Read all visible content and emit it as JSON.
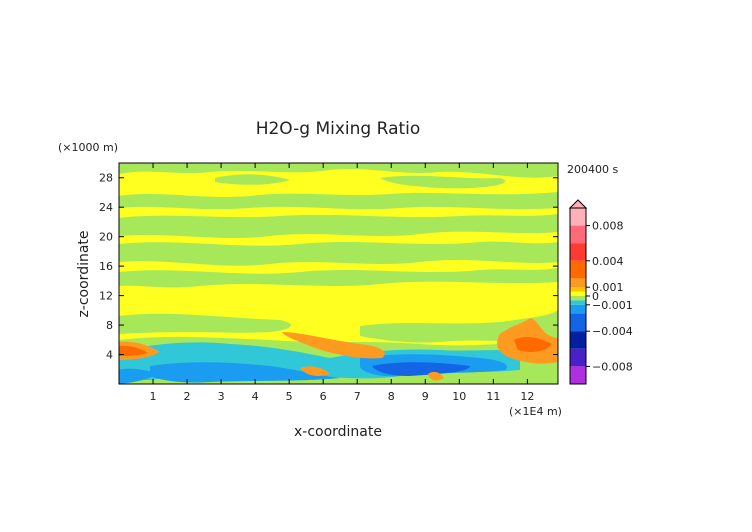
{
  "chart_data": {
    "type": "heatmap",
    "title": "H2O-g Mixing Ratio",
    "xlabel": "x-coordinate",
    "ylabel": "z-coordinate",
    "x_unit_label": "(×1E4 m)",
    "y_unit_label": "(×1000 m)",
    "time_label": "200400 s",
    "xlim": [
      0,
      12.9
    ],
    "ylim": [
      0,
      30
    ],
    "x_ticks": [
      1,
      2,
      3,
      4,
      5,
      6,
      7,
      8,
      9,
      10,
      11,
      12
    ],
    "y_ticks": [
      4,
      8,
      12,
      16,
      20,
      24,
      28
    ],
    "colorbar": {
      "min": -0.01,
      "max": 0.01,
      "ticks": [
        {
          "value": 0.008,
          "label": "0.008"
        },
        {
          "value": 0.004,
          "label": "0.004"
        },
        {
          "value": 0.001,
          "label": "0.001"
        },
        {
          "value": 0,
          "label": "0"
        },
        {
          "value": -0.001,
          "label": "−0.001"
        },
        {
          "value": -0.004,
          "label": "−0.004"
        },
        {
          "value": -0.008,
          "label": "−0.008"
        }
      ],
      "stops": [
        {
          "value": 0.01,
          "color": "#ffb0b8"
        },
        {
          "value": 0.008,
          "color": "#ff6a78"
        },
        {
          "value": 0.006,
          "color": "#ff3a30"
        },
        {
          "value": 0.004,
          "color": "#ff6a00"
        },
        {
          "value": 0.002,
          "color": "#ff9a20"
        },
        {
          "value": 0.001,
          "color": "#ffc400"
        },
        {
          "value": 0.0005,
          "color": "#ffff20"
        },
        {
          "value": 0.0,
          "color": "#a6e85a"
        },
        {
          "value": -0.0005,
          "color": "#30c8d8"
        },
        {
          "value": -0.001,
          "color": "#1a9cf0"
        },
        {
          "value": -0.002,
          "color": "#1464e6"
        },
        {
          "value": -0.004,
          "color": "#0020a0"
        },
        {
          "value": -0.006,
          "color": "#4a20c8"
        },
        {
          "value": -0.008,
          "color": "#b030e0"
        },
        {
          "value": -0.01,
          "color": "#ff40c8"
        }
      ]
    },
    "field_regions": [
      {
        "level": "0.0005",
        "color": "#ffff20",
        "desc": "background"
      },
      {
        "level": "0",
        "color": "#a6e85a",
        "desc": "bands"
      },
      {
        "level": "0.002",
        "color": "#ff9a20",
        "desc": "low-level positive"
      },
      {
        "level": "-0.001",
        "color": "#1a9cf0",
        "desc": "low-level negative"
      }
    ]
  }
}
